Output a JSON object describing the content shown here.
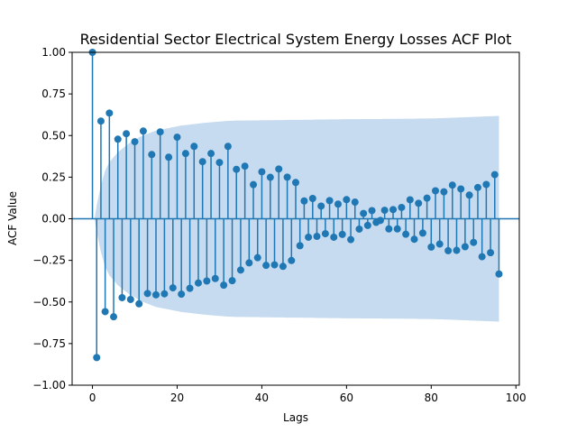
{
  "chart_data": {
    "type": "stem",
    "title": "Residential Sector Electrical System Energy Losses ACF Plot",
    "xlabel": "Lags",
    "ylabel": "ACF Value",
    "xlim": [
      -4.8,
      100.8
    ],
    "ylim": [
      -1.0,
      1.0
    ],
    "xticks": [
      0,
      20,
      40,
      60,
      80,
      100
    ],
    "yticks": [
      -1.0,
      -0.75,
      -0.5,
      -0.25,
      0.0,
      0.25,
      0.5,
      0.75,
      1.0
    ],
    "ytick_labels": [
      "−1.00",
      "−0.75",
      "−0.50",
      "−0.25",
      "0.00",
      "0.25",
      "0.50",
      "0.75",
      "1.00"
    ],
    "grid": false,
    "colors": {
      "stem": "#1f77b4",
      "confidence_band": "#c6dbef"
    },
    "lags": [
      0,
      1,
      2,
      3,
      4,
      5,
      6,
      7,
      8,
      9,
      10,
      11,
      12,
      13,
      14,
      15,
      16,
      17,
      18,
      19,
      20,
      21,
      22,
      23,
      24,
      25,
      26,
      27,
      28,
      29,
      30,
      31,
      32,
      33,
      34,
      35,
      36,
      37,
      38,
      39,
      40,
      41,
      42,
      43,
      44,
      45,
      46,
      47,
      48,
      49,
      50,
      51,
      52,
      53,
      54,
      55,
      56,
      57,
      58,
      59,
      60,
      61,
      62,
      63,
      64,
      65,
      66,
      67,
      68,
      69,
      70,
      71,
      72,
      73,
      74,
      75,
      76,
      77,
      78,
      79,
      80,
      81,
      82,
      83,
      84,
      85,
      86,
      87,
      88,
      89,
      90,
      91,
      92,
      93,
      94,
      95,
      96
    ],
    "acf": [
      1.0,
      -0.834,
      0.587,
      -0.558,
      0.635,
      -0.589,
      0.478,
      -0.474,
      0.511,
      -0.485,
      0.463,
      -0.511,
      0.527,
      -0.449,
      0.386,
      -0.457,
      0.522,
      -0.451,
      0.37,
      -0.415,
      0.49,
      -0.453,
      0.392,
      -0.418,
      0.435,
      -0.386,
      0.343,
      -0.374,
      0.392,
      -0.359,
      0.338,
      -0.399,
      0.435,
      -0.372,
      0.297,
      -0.308,
      0.316,
      -0.265,
      0.205,
      -0.234,
      0.282,
      -0.28,
      0.249,
      -0.277,
      0.299,
      -0.286,
      0.25,
      -0.251,
      0.218,
      -0.162,
      0.107,
      -0.111,
      0.122,
      -0.106,
      0.076,
      -0.09,
      0.109,
      -0.111,
      0.088,
      -0.094,
      0.115,
      -0.125,
      0.1,
      -0.062,
      0.032,
      -0.04,
      0.049,
      -0.022,
      -0.01,
      0.051,
      -0.061,
      0.055,
      -0.061,
      0.068,
      -0.093,
      0.114,
      -0.123,
      0.093,
      -0.086,
      0.124,
      -0.17,
      0.168,
      -0.152,
      0.162,
      -0.192,
      0.202,
      -0.19,
      0.179,
      -0.168,
      0.142,
      -0.142,
      0.188,
      -0.228,
      0.206,
      -0.204,
      0.265,
      -0.332
    ],
    "confidence_upper": [
      0.0,
      0.08,
      0.2,
      0.29,
      0.34,
      0.37,
      0.4,
      0.42,
      0.44,
      0.46,
      0.47,
      0.49,
      0.5,
      0.51,
      0.52,
      0.53,
      0.535,
      0.54,
      0.545,
      0.55,
      0.555,
      0.56,
      0.563,
      0.566,
      0.569,
      0.572,
      0.575,
      0.577,
      0.58,
      0.582,
      0.584,
      0.586,
      0.588,
      0.589,
      0.59,
      0.59,
      0.59,
      0.591,
      0.591,
      0.591,
      0.592,
      0.592,
      0.592,
      0.593,
      0.593,
      0.593,
      0.594,
      0.594,
      0.594,
      0.594,
      0.595,
      0.595,
      0.595,
      0.596,
      0.596,
      0.596,
      0.597,
      0.597,
      0.597,
      0.598,
      0.598,
      0.598,
      0.598,
      0.598,
      0.599,
      0.599,
      0.599,
      0.599,
      0.599,
      0.6,
      0.6,
      0.6,
      0.6,
      0.6,
      0.601,
      0.601,
      0.601,
      0.602,
      0.602,
      0.602,
      0.603,
      0.603,
      0.604,
      0.605,
      0.606,
      0.607,
      0.608,
      0.609,
      0.61,
      0.611,
      0.612,
      0.613,
      0.614,
      0.615,
      0.616,
      0.617,
      0.618
    ]
  }
}
